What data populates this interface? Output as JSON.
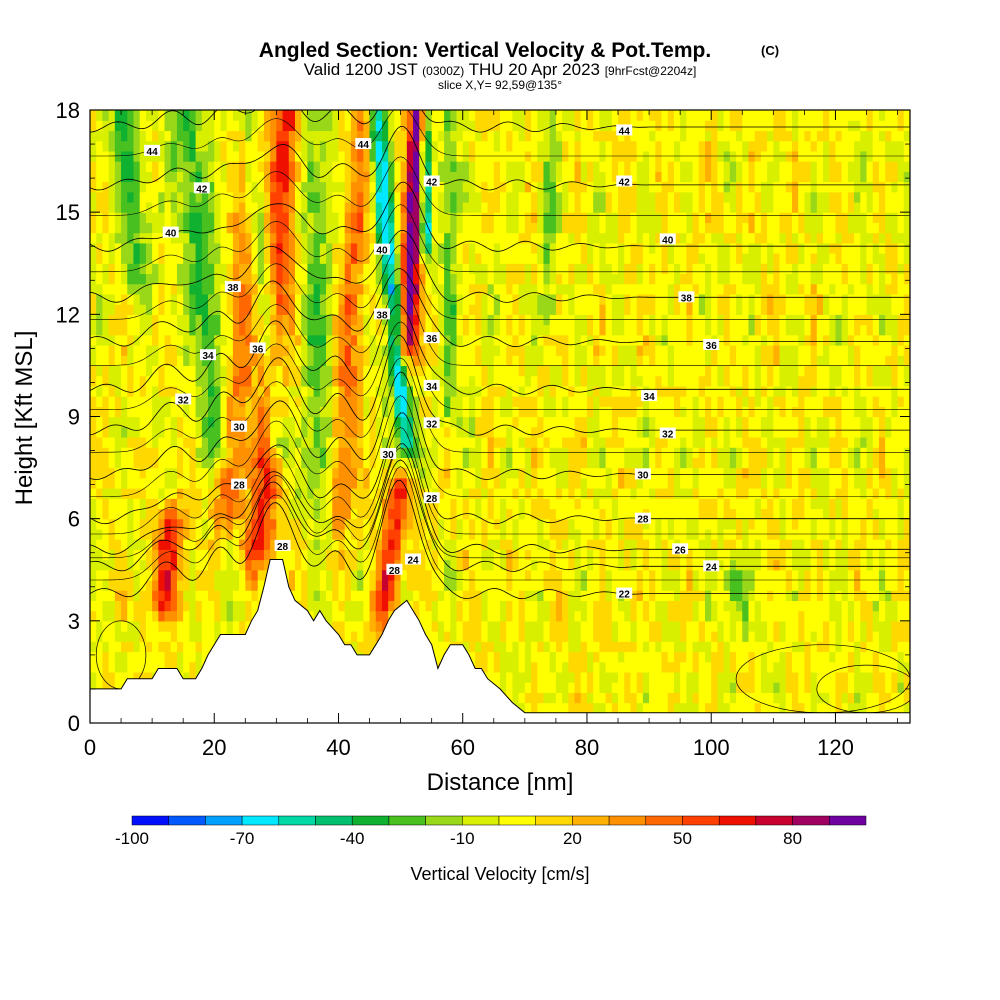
{
  "chart_data": {
    "type": "heatmap",
    "title": "Angled Section: Vertical Velocity & Pot.Temp.",
    "title_suffix": "(C)",
    "subtitle": {
      "valid": "Valid 1200 JST",
      "utc": "(0300Z)",
      "date": "THU 20 Apr 2023",
      "forecast": "[9hrFcst@2204z]"
    },
    "slice_info": "slice X,Y= 92,59@135°",
    "xlabel": "Distance [nm]",
    "ylabel": "Height [Kft MSL]",
    "xlim": [
      0,
      132
    ],
    "ylim": [
      0,
      18
    ],
    "x_ticks": [
      0,
      20,
      40,
      60,
      80,
      100,
      120
    ],
    "x_tick_labels": [
      "0",
      "20",
      "40",
      "60",
      "80",
      "100",
      "120"
    ],
    "y_ticks": [
      0,
      3,
      6,
      9,
      12,
      15,
      18
    ],
    "y_tick_labels": [
      "0",
      "3",
      "6",
      "9",
      "12",
      "15",
      "18"
    ],
    "colorbar": {
      "label": "Vertical Velocity [cm/s]",
      "levels": [
        -100,
        -90,
        -80,
        -70,
        -60,
        -50,
        -40,
        -30,
        -20,
        -10,
        0,
        10,
        20,
        30,
        40,
        50,
        60,
        70,
        80,
        90,
        100
      ],
      "tick_values": [
        -100,
        -70,
        -40,
        -10,
        20,
        50,
        80
      ],
      "tick_labels": [
        "-100",
        "-70",
        "-40",
        "-10",
        "20",
        "50",
        "80"
      ],
      "colors": [
        "#0010ff",
        "#0058ff",
        "#00a0ff",
        "#00e8ff",
        "#00d8a8",
        "#00c070",
        "#10b030",
        "#48c020",
        "#98d818",
        "#d8f000",
        "#ffff00",
        "#ffd800",
        "#ffb000",
        "#ff9000",
        "#ff6800",
        "#ff4000",
        "#f01000",
        "#c80030",
        "#a00060",
        "#7000a0"
      ]
    },
    "terrain": [
      [
        0,
        1.0
      ],
      [
        5,
        1.0
      ],
      [
        6,
        1.3
      ],
      [
        10,
        1.3
      ],
      [
        11,
        1.6
      ],
      [
        14,
        1.6
      ],
      [
        15,
        1.3
      ],
      [
        17,
        1.3
      ],
      [
        18,
        1.6
      ],
      [
        19,
        2.0
      ],
      [
        20,
        2.3
      ],
      [
        21,
        2.6
      ],
      [
        25,
        2.6
      ],
      [
        26,
        3.0
      ],
      [
        27,
        3.3
      ],
      [
        28,
        4.0
      ],
      [
        29,
        4.8
      ],
      [
        31,
        4.8
      ],
      [
        32,
        4.0
      ],
      [
        33,
        3.6
      ],
      [
        35,
        3.3
      ],
      [
        36,
        3.0
      ],
      [
        37,
        3.3
      ],
      [
        38,
        3.0
      ],
      [
        40,
        2.6
      ],
      [
        41,
        2.3
      ],
      [
        42,
        2.3
      ],
      [
        43,
        2.0
      ],
      [
        45,
        2.0
      ],
      [
        46,
        2.3
      ],
      [
        47,
        2.6
      ],
      [
        48,
        3.0
      ],
      [
        49,
        3.3
      ],
      [
        51,
        3.6
      ],
      [
        52,
        3.3
      ],
      [
        53,
        3.0
      ],
      [
        54,
        2.6
      ],
      [
        55,
        2.3
      ],
      [
        56,
        1.6
      ],
      [
        57,
        2.0
      ],
      [
        58,
        2.3
      ],
      [
        60,
        2.3
      ],
      [
        61,
        2.0
      ],
      [
        62,
        1.6
      ],
      [
        63,
        1.6
      ],
      [
        64,
        1.3
      ],
      [
        66,
        1.0
      ],
      [
        68,
        0.6
      ],
      [
        70,
        0.3
      ],
      [
        71,
        0.3
      ],
      [
        80,
        0.3
      ],
      [
        132,
        0.3
      ]
    ],
    "isentrope_values": [
      22,
      24,
      26,
      28,
      30,
      32,
      34,
      36,
      38,
      40,
      42,
      44
    ],
    "isentrope_far_heights": [
      3.8,
      4.6,
      5.1,
      6.0,
      7.3,
      8.6,
      9.8,
      11.2,
      12.5,
      14.0,
      15.8,
      17.5
    ],
    "isentrope_labels": [
      {
        "text": "44",
        "x": 10,
        "y": 16.8
      },
      {
        "text": "44",
        "x": 44,
        "y": 17.0
      },
      {
        "text": "44",
        "x": 86,
        "y": 17.4
      },
      {
        "text": "42",
        "x": 18,
        "y": 15.7
      },
      {
        "text": "42",
        "x": 55,
        "y": 15.9
      },
      {
        "text": "42",
        "x": 86,
        "y": 15.9
      },
      {
        "text": "40",
        "x": 13,
        "y": 14.4
      },
      {
        "text": "40",
        "x": 47,
        "y": 13.9
      },
      {
        "text": "40",
        "x": 93,
        "y": 14.2
      },
      {
        "text": "38",
        "x": 23,
        "y": 12.8
      },
      {
        "text": "38",
        "x": 47,
        "y": 12.0
      },
      {
        "text": "38",
        "x": 96,
        "y": 12.5
      },
      {
        "text": "36",
        "x": 27,
        "y": 11.0
      },
      {
        "text": "36",
        "x": 55,
        "y": 11.3
      },
      {
        "text": "36",
        "x": 100,
        "y": 11.1
      },
      {
        "text": "34",
        "x": 19,
        "y": 10.8
      },
      {
        "text": "34",
        "x": 55,
        "y": 9.9
      },
      {
        "text": "34",
        "x": 90,
        "y": 9.6
      },
      {
        "text": "32",
        "x": 15,
        "y": 9.5
      },
      {
        "text": "32",
        "x": 55,
        "y": 8.8
      },
      {
        "text": "32",
        "x": 93,
        "y": 8.5
      },
      {
        "text": "30",
        "x": 24,
        "y": 8.7
      },
      {
        "text": "30",
        "x": 48,
        "y": 7.9
      },
      {
        "text": "30",
        "x": 89,
        "y": 7.3
      },
      {
        "text": "28",
        "x": 24,
        "y": 7.0
      },
      {
        "text": "28",
        "x": 55,
        "y": 6.6
      },
      {
        "text": "28",
        "x": 89,
        "y": 6.0
      },
      {
        "text": "28",
        "x": 31,
        "y": 5.2
      },
      {
        "text": "28",
        "x": 49,
        "y": 4.5
      },
      {
        "text": "26",
        "x": 95,
        "y": 5.1
      },
      {
        "text": "24",
        "x": 52,
        "y": 4.8
      },
      {
        "text": "24",
        "x": 100,
        "y": 4.6
      },
      {
        "text": "22",
        "x": 86,
        "y": 3.8
      }
    ],
    "features": [
      {
        "sign": "up",
        "x0": 27,
        "x1": 32,
        "y0": 4.8,
        "y1": 18,
        "tilt": -1.2,
        "width": 2.4,
        "value": 55
      },
      {
        "sign": "up",
        "x0": 51,
        "x1": 53,
        "y0": 11,
        "y1": 18,
        "tilt": 0.0,
        "width": 1.6,
        "value": 95
      },
      {
        "sign": "up",
        "x0": 47,
        "x1": 50,
        "y0": 3.3,
        "y1": 7,
        "tilt": 0.0,
        "width": 2.0,
        "value": 55
      },
      {
        "sign": "up",
        "x0": 12,
        "x1": 13,
        "y0": 3.5,
        "y1": 6,
        "tilt": 0.0,
        "width": 2.4,
        "value": 55
      },
      {
        "sign": "up",
        "x0": 22,
        "x1": 27,
        "y0": 6,
        "y1": 18,
        "tilt": 0.0,
        "width": 2.4,
        "value": 35
      },
      {
        "sign": "up",
        "x0": 40,
        "x1": 44,
        "y0": 6,
        "y1": 18,
        "tilt": 0.0,
        "width": 2.2,
        "value": 35
      },
      {
        "sign": "down",
        "x0": 30,
        "x1": 26,
        "y0": 8,
        "y1": 18,
        "tilt": 0.0,
        "width": 2.0,
        "value": -40
      },
      {
        "sign": "down",
        "x0": 51,
        "x1": 46,
        "y0": 8,
        "y1": 18,
        "tilt": 0.0,
        "width": 1.6,
        "value": -70
      },
      {
        "sign": "down",
        "x0": 54,
        "x1": 54,
        "y0": 14,
        "y1": 18,
        "tilt": 0.0,
        "width": 0.8,
        "value": -90
      },
      {
        "sign": "down",
        "x0": 21,
        "x1": 15,
        "y0": 8,
        "y1": 18,
        "tilt": 0.0,
        "width": 2.6,
        "value": -35
      },
      {
        "sign": "down",
        "x0": 37,
        "x1": 36,
        "y0": 6,
        "y1": 18,
        "tilt": 0.0,
        "width": 2.2,
        "value": -30
      },
      {
        "sign": "down",
        "x0": 58,
        "x1": 58,
        "y0": 9,
        "y1": 18,
        "tilt": 0.0,
        "width": 1.5,
        "value": -25
      },
      {
        "sign": "down",
        "x0": 74,
        "x1": 74,
        "y0": 12,
        "y1": 18,
        "tilt": 0.0,
        "width": 1.5,
        "value": -20
      },
      {
        "sign": "down",
        "x0": 104,
        "x1": 104,
        "y0": 3.3,
        "y1": 4.3,
        "tilt": 0.0,
        "width": 2.0,
        "value": -30
      },
      {
        "sign": "down",
        "x0": 8,
        "x1": 5,
        "y0": 13,
        "y1": 18,
        "tilt": 0.0,
        "width": 2.5,
        "value": -30
      }
    ]
  }
}
